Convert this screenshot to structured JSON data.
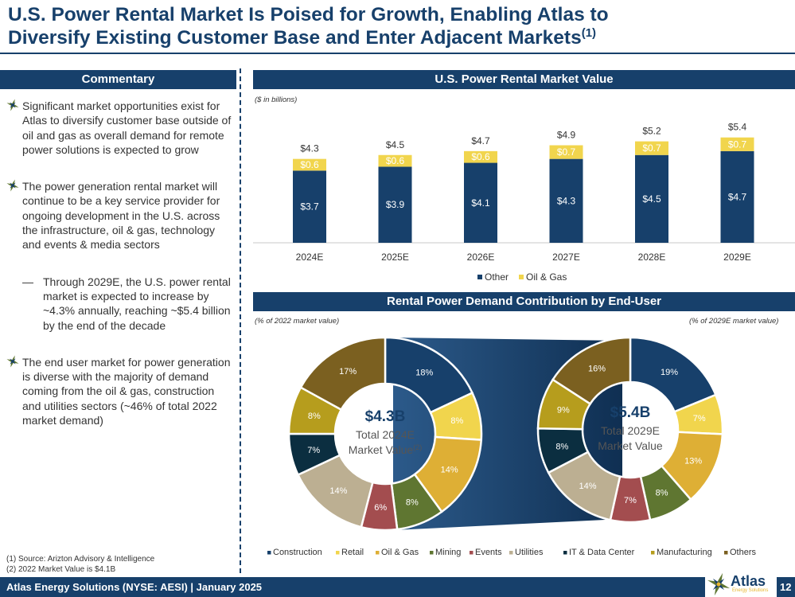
{
  "header": {
    "title_line1": "U.S. Power Rental Market Is Poised for Growth, Enabling Atlas to",
    "title_line2": "Diversify Existing Customer Base and Enter Adjacent Markets",
    "title_sup": "(1)"
  },
  "commentary": {
    "heading": "Commentary",
    "bullet1": "Significant market opportunities exist for Atlas to diversify customer base outside of oil and gas as overall demand for remote power solutions is expected to grow",
    "bullet2": "The power generation rental market will continue to be a key service provider for ongoing development in the U.S. across the infrastructure, oil & gas, technology and events & media sectors",
    "sub_dash": "—",
    "sub1": "Through 2029E, the U.S. power rental market is expected to increase by ~4.3% annually, reaching ~$5.4 billion by the end of the decade",
    "bullet3": "The end user market for power generation is diverse with the majority of demand coming from the oil & gas, construction and utilities sectors (~46% of total 2022 market demand)"
  },
  "footnotes": {
    "f1": "(1)  Source: Arizton Advisory & Intelligence",
    "f2": "(2)  2022 Market Value is $4.1B"
  },
  "footer": {
    "text": "Atlas Energy Solutions (NYSE: AESI)  |  January 2025",
    "page": "12",
    "logo": "Atlas",
    "logo_sub": "Energy Solutions"
  },
  "colors": {
    "navy": "#17406b",
    "other": "#17406b",
    "oilgas_bar": "#f1d54d",
    "construction": "#17406b",
    "retail": "#f1d54d",
    "oil_gas": "#deaf35",
    "mining": "#5f7631",
    "events": "#a34d4f",
    "utilities": "#bcaf92",
    "it": "#0b2e40",
    "manufacturing": "#b69d1d",
    "others": "#7b6020"
  },
  "chart_data": [
    {
      "type": "bar",
      "stacked": true,
      "title": "U.S. Power Rental Market Value",
      "subtitle": "($ in billions)",
      "categories": [
        "2024E",
        "2025E",
        "2026E",
        "2027E",
        "2028E",
        "2029E"
      ],
      "series": [
        {
          "name": "Other",
          "values": [
            3.7,
            3.9,
            4.1,
            4.3,
            4.5,
            4.7
          ],
          "labels": [
            "$3.7",
            "$3.9",
            "$4.1",
            "$4.3",
            "$4.5",
            "$4.7"
          ]
        },
        {
          "name": "Oil & Gas",
          "values": [
            0.6,
            0.6,
            0.6,
            0.7,
            0.7,
            0.7
          ],
          "labels": [
            "$0.6",
            "$0.6",
            "$0.6",
            "$0.7",
            "$0.7",
            "$0.7"
          ]
        }
      ],
      "totals": [
        4.3,
        4.5,
        4.7,
        4.9,
        5.2,
        5.4
      ],
      "total_labels": [
        "$4.3",
        "$4.5",
        "$4.7",
        "$4.9",
        "$5.2",
        "$5.4"
      ],
      "legend": "bottom"
    },
    {
      "type": "pie",
      "donut": true,
      "title": "Rental Power Demand Contribution by End-User",
      "caption": "(% of 2022 market value)",
      "center_value": "$4.3B",
      "center_line1": "Total 2024E",
      "center_line2": "Market Value",
      "center_sup": "(2)",
      "categories": [
        "Construction",
        "Retail",
        "Oil & Gas",
        "Mining",
        "Events",
        "Utilities",
        "IT & Data Center",
        "Manufacturing",
        "Others"
      ],
      "values": [
        18,
        8,
        14,
        8,
        6,
        14,
        7,
        8,
        17
      ],
      "labels": [
        "18%",
        "8%",
        "14%",
        "8%",
        "6%",
        "14%",
        "7%",
        "8%",
        "17%"
      ]
    },
    {
      "type": "pie",
      "donut": true,
      "caption": "(% of 2029E market value)",
      "center_value": "$5.4B",
      "center_line1": "Total 2029E",
      "center_line2": "Market Value",
      "categories": [
        "Construction",
        "Retail",
        "Oil & Gas",
        "Mining",
        "Events",
        "Utilities",
        "IT & Data Center",
        "Manufacturing",
        "Others"
      ],
      "values": [
        19,
        7,
        13,
        8,
        7,
        14,
        8,
        9,
        16
      ],
      "labels": [
        "19%",
        "7%",
        "13%",
        "8%",
        "7%",
        "14%",
        "8%",
        "9%",
        "16%"
      ]
    }
  ],
  "donut_legend": [
    "Construction",
    "Retail",
    "Oil & Gas",
    "Mining",
    "Events",
    "Utilities",
    "IT & Data Center",
    "Manufacturing",
    "Others"
  ]
}
